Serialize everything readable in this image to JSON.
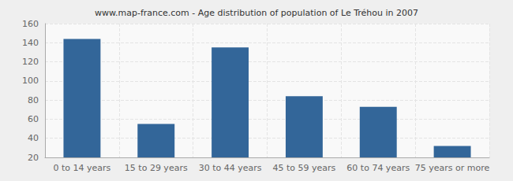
{
  "chart_data": {
    "type": "bar",
    "title": "www.map-france.com - Age distribution of population of Le Tréhou in 2007",
    "categories": [
      "0 to 14 years",
      "15 to 29 years",
      "30 to 44 years",
      "45 to 59 years",
      "60 to 74 years",
      "75 years or more"
    ],
    "values": [
      144,
      55,
      135,
      84,
      73,
      32
    ],
    "color": "#336699",
    "ylim": [
      20,
      160
    ],
    "yticks": [
      20,
      40,
      60,
      80,
      100,
      120,
      140,
      160
    ],
    "grid": true
  }
}
